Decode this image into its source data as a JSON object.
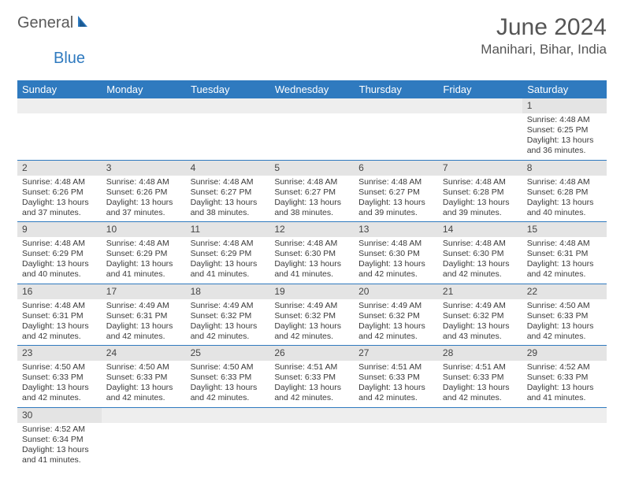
{
  "logo": {
    "part1": "General",
    "part2": "Blue"
  },
  "title": "June 2024",
  "location": "Manihari, Bihar, India",
  "colors": {
    "header_bg": "#2f7abf",
    "header_text": "#ffffff",
    "daynum_bg": "#e4e4e4",
    "text": "#3a3a3a",
    "title_color": "#555555"
  },
  "weekdays": [
    "Sunday",
    "Monday",
    "Tuesday",
    "Wednesday",
    "Thursday",
    "Friday",
    "Saturday"
  ],
  "weeks": [
    [
      null,
      null,
      null,
      null,
      null,
      null,
      {
        "n": "1",
        "sunrise": "Sunrise: 4:48 AM",
        "sunset": "Sunset: 6:25 PM",
        "daylight": "Daylight: 13 hours and 36 minutes."
      }
    ],
    [
      {
        "n": "2",
        "sunrise": "Sunrise: 4:48 AM",
        "sunset": "Sunset: 6:26 PM",
        "daylight": "Daylight: 13 hours and 37 minutes."
      },
      {
        "n": "3",
        "sunrise": "Sunrise: 4:48 AM",
        "sunset": "Sunset: 6:26 PM",
        "daylight": "Daylight: 13 hours and 37 minutes."
      },
      {
        "n": "4",
        "sunrise": "Sunrise: 4:48 AM",
        "sunset": "Sunset: 6:27 PM",
        "daylight": "Daylight: 13 hours and 38 minutes."
      },
      {
        "n": "5",
        "sunrise": "Sunrise: 4:48 AM",
        "sunset": "Sunset: 6:27 PM",
        "daylight": "Daylight: 13 hours and 38 minutes."
      },
      {
        "n": "6",
        "sunrise": "Sunrise: 4:48 AM",
        "sunset": "Sunset: 6:27 PM",
        "daylight": "Daylight: 13 hours and 39 minutes."
      },
      {
        "n": "7",
        "sunrise": "Sunrise: 4:48 AM",
        "sunset": "Sunset: 6:28 PM",
        "daylight": "Daylight: 13 hours and 39 minutes."
      },
      {
        "n": "8",
        "sunrise": "Sunrise: 4:48 AM",
        "sunset": "Sunset: 6:28 PM",
        "daylight": "Daylight: 13 hours and 40 minutes."
      }
    ],
    [
      {
        "n": "9",
        "sunrise": "Sunrise: 4:48 AM",
        "sunset": "Sunset: 6:29 PM",
        "daylight": "Daylight: 13 hours and 40 minutes."
      },
      {
        "n": "10",
        "sunrise": "Sunrise: 4:48 AM",
        "sunset": "Sunset: 6:29 PM",
        "daylight": "Daylight: 13 hours and 41 minutes."
      },
      {
        "n": "11",
        "sunrise": "Sunrise: 4:48 AM",
        "sunset": "Sunset: 6:29 PM",
        "daylight": "Daylight: 13 hours and 41 minutes."
      },
      {
        "n": "12",
        "sunrise": "Sunrise: 4:48 AM",
        "sunset": "Sunset: 6:30 PM",
        "daylight": "Daylight: 13 hours and 41 minutes."
      },
      {
        "n": "13",
        "sunrise": "Sunrise: 4:48 AM",
        "sunset": "Sunset: 6:30 PM",
        "daylight": "Daylight: 13 hours and 42 minutes."
      },
      {
        "n": "14",
        "sunrise": "Sunrise: 4:48 AM",
        "sunset": "Sunset: 6:30 PM",
        "daylight": "Daylight: 13 hours and 42 minutes."
      },
      {
        "n": "15",
        "sunrise": "Sunrise: 4:48 AM",
        "sunset": "Sunset: 6:31 PM",
        "daylight": "Daylight: 13 hours and 42 minutes."
      }
    ],
    [
      {
        "n": "16",
        "sunrise": "Sunrise: 4:48 AM",
        "sunset": "Sunset: 6:31 PM",
        "daylight": "Daylight: 13 hours and 42 minutes."
      },
      {
        "n": "17",
        "sunrise": "Sunrise: 4:49 AM",
        "sunset": "Sunset: 6:31 PM",
        "daylight": "Daylight: 13 hours and 42 minutes."
      },
      {
        "n": "18",
        "sunrise": "Sunrise: 4:49 AM",
        "sunset": "Sunset: 6:32 PM",
        "daylight": "Daylight: 13 hours and 42 minutes."
      },
      {
        "n": "19",
        "sunrise": "Sunrise: 4:49 AM",
        "sunset": "Sunset: 6:32 PM",
        "daylight": "Daylight: 13 hours and 42 minutes."
      },
      {
        "n": "20",
        "sunrise": "Sunrise: 4:49 AM",
        "sunset": "Sunset: 6:32 PM",
        "daylight": "Daylight: 13 hours and 42 minutes."
      },
      {
        "n": "21",
        "sunrise": "Sunrise: 4:49 AM",
        "sunset": "Sunset: 6:32 PM",
        "daylight": "Daylight: 13 hours and 43 minutes."
      },
      {
        "n": "22",
        "sunrise": "Sunrise: 4:50 AM",
        "sunset": "Sunset: 6:33 PM",
        "daylight": "Daylight: 13 hours and 42 minutes."
      }
    ],
    [
      {
        "n": "23",
        "sunrise": "Sunrise: 4:50 AM",
        "sunset": "Sunset: 6:33 PM",
        "daylight": "Daylight: 13 hours and 42 minutes."
      },
      {
        "n": "24",
        "sunrise": "Sunrise: 4:50 AM",
        "sunset": "Sunset: 6:33 PM",
        "daylight": "Daylight: 13 hours and 42 minutes."
      },
      {
        "n": "25",
        "sunrise": "Sunrise: 4:50 AM",
        "sunset": "Sunset: 6:33 PM",
        "daylight": "Daylight: 13 hours and 42 minutes."
      },
      {
        "n": "26",
        "sunrise": "Sunrise: 4:51 AM",
        "sunset": "Sunset: 6:33 PM",
        "daylight": "Daylight: 13 hours and 42 minutes."
      },
      {
        "n": "27",
        "sunrise": "Sunrise: 4:51 AM",
        "sunset": "Sunset: 6:33 PM",
        "daylight": "Daylight: 13 hours and 42 minutes."
      },
      {
        "n": "28",
        "sunrise": "Sunrise: 4:51 AM",
        "sunset": "Sunset: 6:33 PM",
        "daylight": "Daylight: 13 hours and 42 minutes."
      },
      {
        "n": "29",
        "sunrise": "Sunrise: 4:52 AM",
        "sunset": "Sunset: 6:33 PM",
        "daylight": "Daylight: 13 hours and 41 minutes."
      }
    ],
    [
      {
        "n": "30",
        "sunrise": "Sunrise: 4:52 AM",
        "sunset": "Sunset: 6:34 PM",
        "daylight": "Daylight: 13 hours and 41 minutes."
      },
      null,
      null,
      null,
      null,
      null,
      null
    ]
  ]
}
